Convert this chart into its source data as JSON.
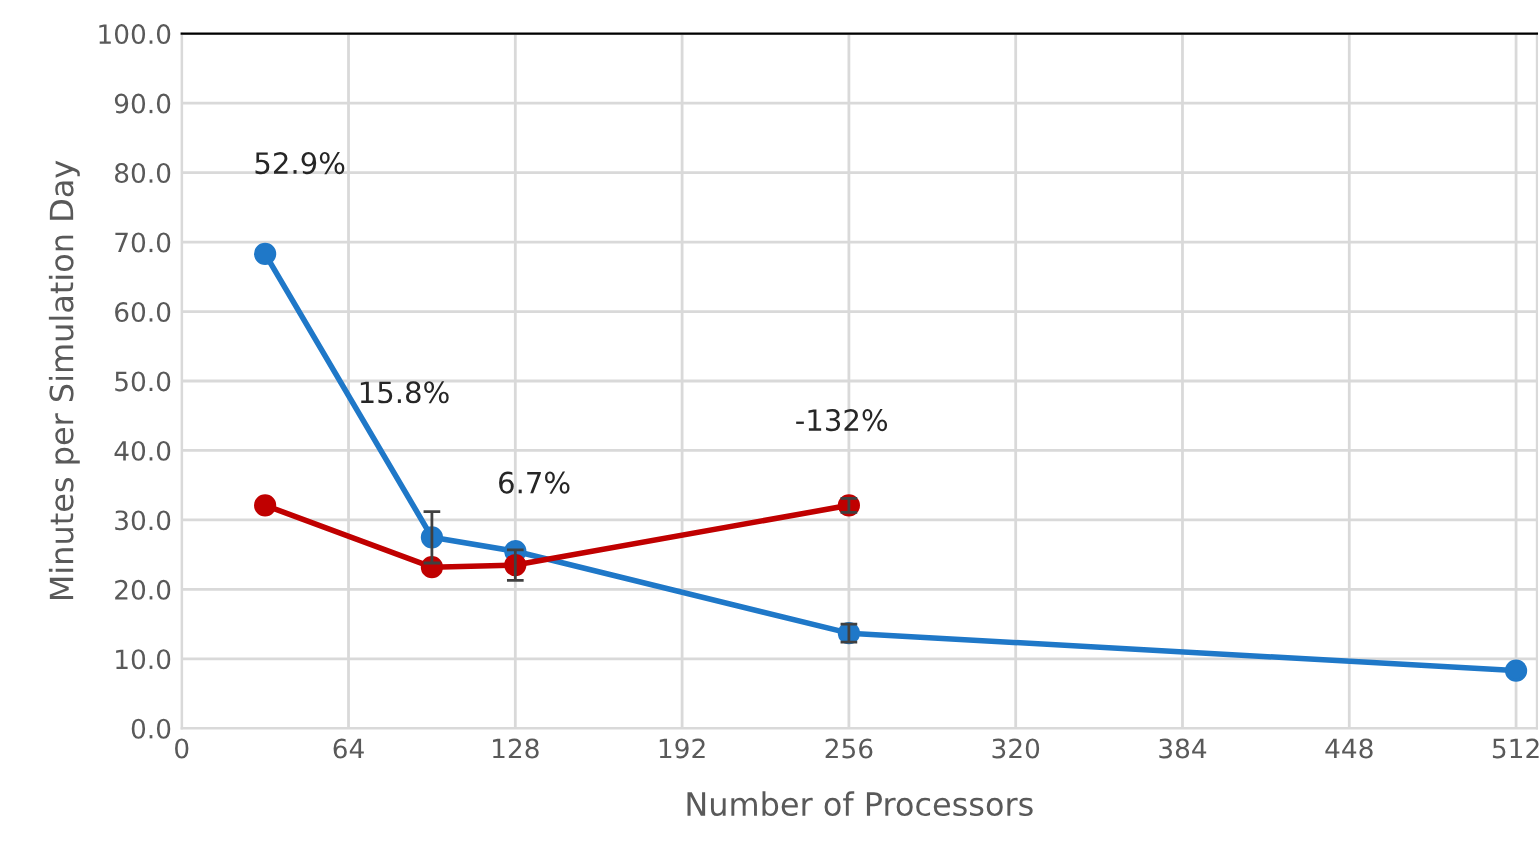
{
  "chart_data": {
    "type": "line",
    "xlabel": "Number of Processors",
    "ylabel": "Minutes per Simulation Day",
    "series": [
      {
        "x": [
          32,
          96,
          128,
          256,
          512
        ],
        "values": [
          68.3,
          27.5,
          25.5,
          13.7,
          8.3
        ],
        "errors": [
          null,
          3.7,
          null,
          1.3,
          null
        ],
        "color": "#1f78c8"
      },
      {
        "x": [
          32,
          96,
          128,
          256
        ],
        "values": [
          32.1,
          23.2,
          23.5,
          32.1
        ],
        "errors": [
          null,
          null,
          2.2,
          1.0
        ],
        "color": "#c00000"
      }
    ],
    "annotations": [
      "52.9%",
      "15.8%",
      "6.7%",
      "-132%"
    ],
    "xlim": [
      0,
      520
    ],
    "xticks": [
      0,
      64,
      128,
      192,
      256,
      320,
      384,
      448,
      512
    ],
    "ylim": [
      0,
      100
    ],
    "yticks": [
      {
        "value": 0,
        "label": "0.0"
      },
      {
        "value": 10,
        "label": "10.0"
      },
      {
        "value": 20,
        "label": "20.0"
      },
      {
        "value": 30,
        "label": "30.0"
      },
      {
        "value": 40,
        "label": "40.0"
      },
      {
        "value": 50,
        "label": "50.0"
      },
      {
        "value": 60,
        "label": "60.0"
      },
      {
        "value": 70,
        "label": "70.0"
      },
      {
        "value": 80,
        "label": "80.0"
      },
      {
        "value": 90,
        "label": "90.0"
      },
      {
        "value": 100,
        "label": "100.0"
      }
    ],
    "grid": true,
    "marker": "circle",
    "line_style": "solid"
  }
}
